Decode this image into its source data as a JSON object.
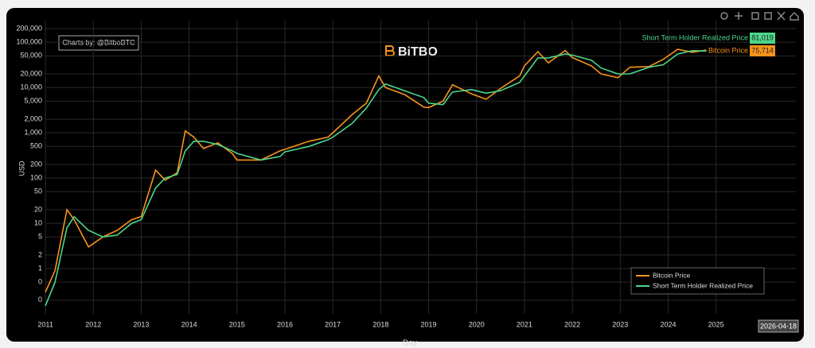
{
  "chart_data": {
    "type": "line",
    "credit": "Charts by: @BitboBTC",
    "logo": "BiTBO",
    "ylabel": "USD",
    "xlabel": "Day",
    "hover_date": "2026-04-18",
    "log_y": true,
    "grid": true,
    "legend": "bottom-right",
    "x": [
      2011.0,
      2011.2,
      2011.45,
      2011.6,
      2011.9,
      2012.2,
      2012.5,
      2012.8,
      2013.0,
      2013.3,
      2013.5,
      2013.75,
      2013.92,
      2014.1,
      2014.3,
      2014.6,
      2014.9,
      2015.0,
      2015.5,
      2015.9,
      2016.0,
      2016.5,
      2016.9,
      2017.0,
      2017.4,
      2017.7,
      2017.96,
      2018.1,
      2018.5,
      2018.9,
      2019.0,
      2019.3,
      2019.5,
      2019.9,
      2020.2,
      2020.5,
      2020.9,
      2021.0,
      2021.28,
      2021.5,
      2021.85,
      2022.0,
      2022.4,
      2022.6,
      2022.95,
      2023.2,
      2023.6,
      2023.9,
      2024.2,
      2024.5,
      2024.8
    ],
    "series": [
      {
        "name": "Bitcoin Price",
        "color": "#f7931a",
        "last_label": "75,714",
        "values": [
          0.3,
          0.9,
          20,
          12,
          3,
          5,
          7,
          12,
          14,
          150,
          90,
          130,
          1100,
          800,
          450,
          600,
          350,
          250,
          250,
          400,
          430,
          650,
          800,
          1000,
          2500,
          4500,
          18000,
          10000,
          7000,
          3700,
          3600,
          5000,
          11500,
          7200,
          5500,
          9500,
          18000,
          30000,
          62000,
          35000,
          66000,
          46000,
          30000,
          20000,
          16500,
          28000,
          29000,
          42000,
          70000,
          60000,
          67000
        ]
      },
      {
        "name": "Short Term Holder Realized Price",
        "color": "#4cd68a",
        "last_label": "81,019",
        "values": [
          0.15,
          0.5,
          8,
          14,
          7,
          5,
          5.5,
          10,
          12,
          60,
          100,
          120,
          400,
          650,
          650,
          550,
          400,
          350,
          250,
          300,
          380,
          500,
          700,
          800,
          1600,
          3500,
          9000,
          12000,
          8500,
          6000,
          4500,
          4200,
          8000,
          9000,
          7500,
          8500,
          13000,
          18000,
          45000,
          45000,
          55000,
          52000,
          40000,
          27000,
          20000,
          20000,
          28000,
          32000,
          55000,
          65000,
          64000
        ]
      }
    ],
    "xlim": [
      2010.8,
      2026.75
    ],
    "xticks": [
      2011,
      2012,
      2013,
      2014,
      2015,
      2016,
      2017,
      2018,
      2019,
      2020,
      2021,
      2022,
      2023,
      2024,
      2025
    ],
    "ylim": [
      0.1,
      300000
    ],
    "yticks": [
      {
        "value": 0.2,
        "label": "0"
      },
      {
        "value": 0.5,
        "label": "0"
      },
      1,
      2,
      5,
      10,
      20,
      50,
      100,
      200,
      500,
      {
        "value": 1000,
        "label": "1,000"
      },
      {
        "value": 2000,
        "label": "2,000"
      },
      {
        "value": 5000,
        "label": "5,000"
      },
      {
        "value": 10000,
        "label": "10,000"
      },
      {
        "value": 20000,
        "label": "20,000"
      },
      {
        "value": 50000,
        "label": "50,000"
      },
      {
        "value": 100000,
        "label": "100,000"
      },
      {
        "value": 200000,
        "label": "200,000"
      }
    ]
  }
}
